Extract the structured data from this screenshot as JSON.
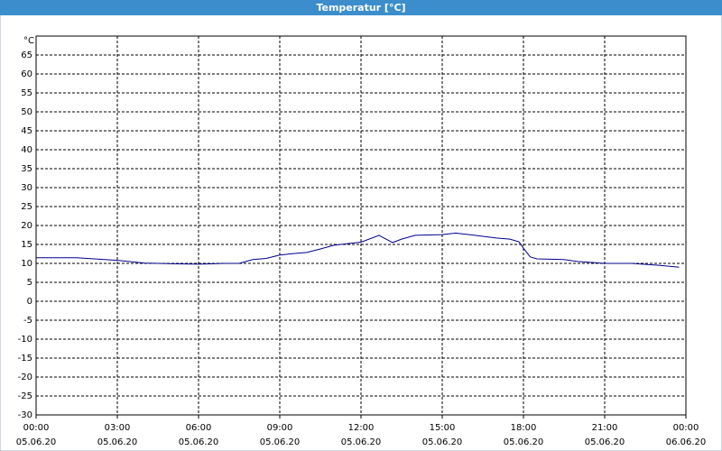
{
  "chart_data": {
    "type": "line",
    "title": "Temperatur [°C]",
    "y_unit": "°C",
    "x": [
      "2020-06-05T00:00",
      "2020-06-05T01:30",
      "2020-06-05T03:00",
      "2020-06-05T04:00",
      "2020-06-05T05:00",
      "2020-06-05T06:00",
      "2020-06-05T07:00",
      "2020-06-05T07:30",
      "2020-06-05T08:00",
      "2020-06-05T08:30",
      "2020-06-05T09:00",
      "2020-06-05T09:30",
      "2020-06-05T10:00",
      "2020-06-05T10:30",
      "2020-06-05T11:00",
      "2020-06-05T11:30",
      "2020-06-05T12:00",
      "2020-06-05T12:40",
      "2020-06-05T13:10",
      "2020-06-05T13:30",
      "2020-06-05T14:00",
      "2020-06-05T15:00",
      "2020-06-05T15:30",
      "2020-06-05T16:00",
      "2020-06-05T17:00",
      "2020-06-05T17:30",
      "2020-06-05T17:50",
      "2020-06-05T18:00",
      "2020-06-05T18:15",
      "2020-06-05T18:30",
      "2020-06-05T19:30",
      "2020-06-05T20:00",
      "2020-06-05T21:00",
      "2020-06-05T22:00",
      "2020-06-05T23:00",
      "2020-06-05T23:45"
    ],
    "series": [
      {
        "name": "Temperatur",
        "color": "#00008b",
        "values": [
          11.5,
          11.5,
          10.8,
          10.1,
          9.9,
          9.8,
          10,
          10,
          11,
          11.3,
          12.2,
          12.6,
          12.9,
          13.8,
          14.8,
          15.2,
          15.6,
          17.4,
          15.5,
          16.4,
          17.4,
          17.6,
          18.0,
          17.6,
          16.7,
          16.4,
          15.7,
          14,
          11.7,
          11.2,
          11,
          10.5,
          10,
          10,
          9.5,
          9
        ]
      }
    ],
    "ylim": [
      -30,
      70
    ],
    "yticks": [
      -30,
      -25,
      -20,
      -15,
      -10,
      -5,
      0,
      5,
      10,
      15,
      20,
      25,
      30,
      35,
      40,
      45,
      50,
      55,
      60,
      65
    ],
    "xlim": [
      "2020-06-05T00:00",
      "2020-06-06T00:00"
    ],
    "xticks": [
      {
        "value": "2020-06-05T00:00",
        "label": [
          "00:00",
          "05.06.20"
        ]
      },
      {
        "value": "2020-06-05T03:00",
        "label": [
          "03:00",
          "05.06.20"
        ]
      },
      {
        "value": "2020-06-05T06:00",
        "label": [
          "06:00",
          "05.06.20"
        ]
      },
      {
        "value": "2020-06-05T09:00",
        "label": [
          "09:00",
          "05.06.20"
        ]
      },
      {
        "value": "2020-06-05T12:00",
        "label": [
          "12:00",
          "05.06.20"
        ]
      },
      {
        "value": "2020-06-05T15:00",
        "label": [
          "15:00",
          "05.06.20"
        ]
      },
      {
        "value": "2020-06-05T18:00",
        "label": [
          "18:00",
          "05.06.20"
        ]
      },
      {
        "value": "2020-06-05T21:00",
        "label": [
          "21:00",
          "05.06.20"
        ]
      },
      {
        "value": "2020-06-06T00:00",
        "label": [
          "00:00",
          "06.06.20"
        ]
      }
    ],
    "grid": true
  }
}
